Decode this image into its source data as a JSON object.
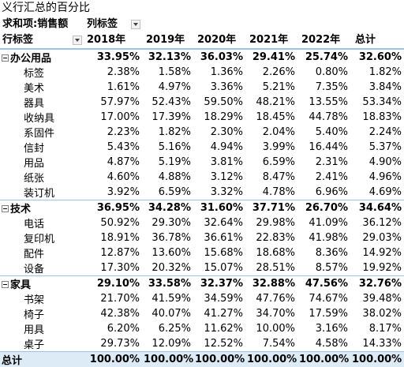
{
  "title": "义行汇总的百分比",
  "pivot": {
    "value_label": "求和项:销售额",
    "col_label": "列标签",
    "row_label": "行标签",
    "columns": [
      "2018年",
      "2019年",
      "2020年",
      "2021年",
      "2022年",
      "总计"
    ]
  },
  "rows": [
    {
      "type": "cat",
      "label": "办公用品",
      "values": [
        "33.95%",
        "32.13%",
        "36.03%",
        "29.41%",
        "25.74%",
        "32.60%"
      ]
    },
    {
      "type": "sub",
      "label": "标签",
      "values": [
        "2.38%",
        "1.58%",
        "1.36%",
        "2.26%",
        "0.80%",
        "1.82%"
      ]
    },
    {
      "type": "sub",
      "label": "美术",
      "values": [
        "1.61%",
        "4.97%",
        "3.36%",
        "5.21%",
        "7.35%",
        "3.84%"
      ]
    },
    {
      "type": "sub",
      "label": "器具",
      "values": [
        "57.97%",
        "52.43%",
        "59.50%",
        "48.21%",
        "13.55%",
        "53.34%"
      ]
    },
    {
      "type": "sub",
      "label": "收纳具",
      "values": [
        "17.00%",
        "17.39%",
        "18.29%",
        "18.45%",
        "44.78%",
        "18.83%"
      ]
    },
    {
      "type": "sub",
      "label": "系固件",
      "values": [
        "2.23%",
        "1.82%",
        "2.30%",
        "2.04%",
        "5.40%",
        "2.24%"
      ]
    },
    {
      "type": "sub",
      "label": "信封",
      "values": [
        "5.43%",
        "5.16%",
        "4.94%",
        "3.99%",
        "16.44%",
        "5.37%"
      ]
    },
    {
      "type": "sub",
      "label": "用品",
      "values": [
        "4.87%",
        "5.19%",
        "3.81%",
        "6.59%",
        "2.31%",
        "4.90%"
      ]
    },
    {
      "type": "sub",
      "label": "纸张",
      "values": [
        "4.60%",
        "4.88%",
        "3.12%",
        "8.47%",
        "2.41%",
        "4.96%"
      ]
    },
    {
      "type": "sub",
      "label": "装订机",
      "values": [
        "3.92%",
        "6.59%",
        "3.32%",
        "4.78%",
        "6.96%",
        "4.69%"
      ]
    },
    {
      "type": "cat",
      "label": "技术",
      "values": [
        "36.95%",
        "34.28%",
        "31.60%",
        "37.71%",
        "26.70%",
        "34.64%"
      ]
    },
    {
      "type": "sub",
      "label": "电话",
      "values": [
        "50.92%",
        "29.30%",
        "32.64%",
        "29.98%",
        "41.09%",
        "36.12%"
      ]
    },
    {
      "type": "sub",
      "label": "复印机",
      "values": [
        "18.91%",
        "36.78%",
        "36.61%",
        "22.83%",
        "41.98%",
        "29.03%"
      ]
    },
    {
      "type": "sub",
      "label": "配件",
      "values": [
        "12.87%",
        "13.60%",
        "15.68%",
        "18.68%",
        "8.36%",
        "14.92%"
      ]
    },
    {
      "type": "sub",
      "label": "设备",
      "values": [
        "17.30%",
        "20.32%",
        "15.07%",
        "28.51%",
        "8.57%",
        "19.92%"
      ]
    },
    {
      "type": "cat",
      "label": "家具",
      "values": [
        "29.10%",
        "33.58%",
        "32.37%",
        "32.88%",
        "47.56%",
        "32.76%"
      ]
    },
    {
      "type": "sub",
      "label": "书架",
      "values": [
        "21.70%",
        "41.59%",
        "34.59%",
        "47.76%",
        "74.67%",
        "39.48%"
      ]
    },
    {
      "type": "sub",
      "label": "椅子",
      "values": [
        "42.38%",
        "40.07%",
        "41.27%",
        "34.70%",
        "17.59%",
        "38.02%"
      ]
    },
    {
      "type": "sub",
      "label": "用具",
      "values": [
        "6.20%",
        "6.25%",
        "11.62%",
        "10.00%",
        "3.16%",
        "8.17%"
      ]
    },
    {
      "type": "sub",
      "label": "桌子",
      "values": [
        "29.73%",
        "12.09%",
        "12.52%",
        "7.54%",
        "4.58%",
        "14.33%"
      ]
    },
    {
      "type": "total",
      "label": "总计",
      "values": [
        "100.00%",
        "100.00%",
        "100.00%",
        "100.00%",
        "100.00%",
        "100.00%"
      ]
    }
  ]
}
